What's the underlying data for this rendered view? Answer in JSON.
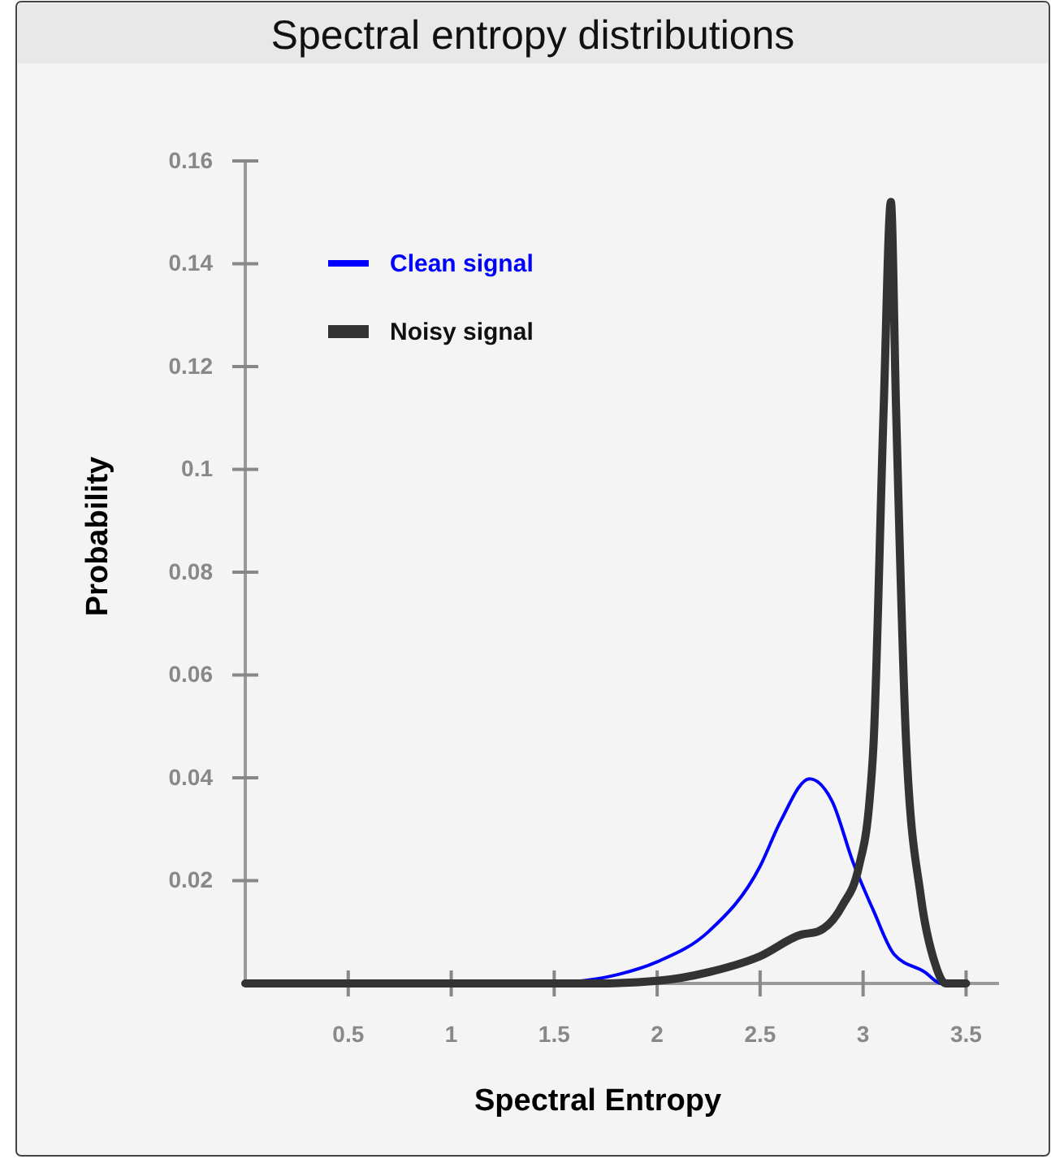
{
  "chart_data": {
    "type": "line",
    "title": "Spectral entropy distributions",
    "xlabel": "Spectral Entropy",
    "ylabel": "Probability",
    "xlim": [
      0,
      3.66
    ],
    "ylim": [
      0,
      0.16
    ],
    "xticks": [
      0.5,
      1,
      1.5,
      2,
      2.5,
      3,
      3.5
    ],
    "yticks": [
      0.02,
      0.04,
      0.06,
      0.08,
      0.1,
      0.12,
      0.14,
      0.16
    ],
    "grid": false,
    "legend": "top left",
    "marker": "none",
    "line_style": "solid",
    "series": [
      {
        "name": "Clean signal",
        "color": "#0000ff",
        "x": [
          1.5,
          1.75,
          2,
          2.25,
          2.5,
          2.6,
          2.74,
          2.85,
          2.95,
          3.05,
          3.15,
          3.3,
          3.38,
          3.45
        ],
        "values": [
          0,
          0.0012,
          0.0042,
          0.0101,
          0.0228,
          0.0316,
          0.0398,
          0.0354,
          0.0237,
          0.0142,
          0.0057,
          0.0022,
          0,
          0
        ]
      },
      {
        "name": "Noisy signal",
        "color": "#333333",
        "x": [
          0,
          1,
          1.5,
          1.7,
          2,
          2.25,
          2.5,
          2.7,
          2.78,
          2.9,
          2.98,
          3.03,
          3.05,
          3.1,
          3.135,
          3.16,
          3.21,
          3.28,
          3.35,
          3.4,
          3.5
        ],
        "values": [
          0,
          0,
          0,
          0,
          0.0005,
          0.0022,
          0.0053,
          0.0095,
          0.0101,
          0.0152,
          0.0228,
          0.035,
          0.046,
          0.112,
          0.152,
          0.112,
          0.046,
          0.017,
          0.0038,
          0,
          0
        ]
      }
    ]
  }
}
